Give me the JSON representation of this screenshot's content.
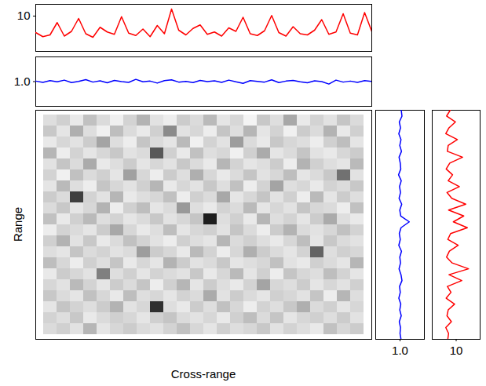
{
  "chart_data": [
    {
      "type": "heatmap",
      "xlabel": "Cross-range",
      "ylabel": "Range",
      "tick_labels": false,
      "cells": [
        [
          0.8,
          1.2,
          0.5,
          1.6,
          0.9,
          0.3,
          1.1,
          2.0,
          0.7,
          0.4,
          1.3,
          0.9,
          1.8,
          0.6,
          1.0,
          0.2,
          1.4,
          0.8,
          2.3,
          0.5,
          1.1,
          0.7,
          1.5,
          0.9
        ],
        [
          1.4,
          0.6,
          2.1,
          0.8,
          0.3,
          1.7,
          0.9,
          0.5,
          1.2,
          3.1,
          0.7,
          1.0,
          0.4,
          1.5,
          0.8,
          1.9,
          0.6,
          1.1,
          0.3,
          1.3,
          0.9,
          2.0,
          0.5,
          1.2
        ],
        [
          0.5,
          1.0,
          0.7,
          1.3,
          2.4,
          0.8,
          0.4,
          1.5,
          0.9,
          0.6,
          1.8,
          0.3,
          1.1,
          0.7,
          2.6,
          0.9,
          0.5,
          1.4,
          1.0,
          0.8,
          0.4,
          1.2,
          1.7,
          0.6
        ],
        [
          1.9,
          0.4,
          1.1,
          0.6,
          1.0,
          1.4,
          0.7,
          0.9,
          4.5,
          1.2,
          0.5,
          1.6,
          0.8,
          1.0,
          0.3,
          1.2,
          2.2,
          0.6,
          0.9,
          1.5,
          0.7,
          0.5,
          1.0,
          1.3
        ],
        [
          0.7,
          1.5,
          0.9,
          2.2,
          0.5,
          0.8,
          1.3,
          0.6,
          1.0,
          0.7,
          1.4,
          0.9,
          0.5,
          1.9,
          1.1,
          0.6,
          0.8,
          1.3,
          0.4,
          2.0,
          1.2,
          0.8,
          0.6,
          1.8
        ],
        [
          1.1,
          0.3,
          1.6,
          0.9,
          1.2,
          0.6,
          2.5,
          1.0,
          0.4,
          1.3,
          0.8,
          2.1,
          1.0,
          0.5,
          0.9,
          1.5,
          0.7,
          1.0,
          1.7,
          0.6,
          0.9,
          1.4,
          3.8,
          0.7
        ],
        [
          0.6,
          1.8,
          0.8,
          0.4,
          1.5,
          1.0,
          0.7,
          1.2,
          1.9,
          0.5,
          1.0,
          0.7,
          1.4,
          0.8,
          1.6,
          0.4,
          1.1,
          2.4,
          0.8,
          1.0,
          0.5,
          1.1,
          0.9,
          1.4
        ],
        [
          1.3,
          0.9,
          5.2,
          1.1,
          0.7,
          1.9,
          0.5,
          0.8,
          1.0,
          1.6,
          0.4,
          1.2,
          0.9,
          2.3,
          0.6,
          1.0,
          1.5,
          0.7,
          1.2,
          0.4,
          1.8,
          0.6,
          1.3,
          0.8
        ],
        [
          0.9,
          1.4,
          0.6,
          1.0,
          2.0,
          0.4,
          1.2,
          1.7,
          0.6,
          0.9,
          2.7,
          0.8,
          0.5,
          1.1,
          0.9,
          1.8,
          0.6,
          1.0,
          0.7,
          1.5,
          1.0,
          0.9,
          0.4,
          1.6
        ],
        [
          1.6,
          0.5,
          1.2,
          1.8,
          0.8,
          1.1,
          0.6,
          0.9,
          1.4,
          0.7,
          1.0,
          1.5,
          6.1,
          0.8,
          1.2,
          0.5,
          1.9,
          0.8,
          1.1,
          0.6,
          1.3,
          2.2,
          0.8,
          0.5
        ],
        [
          0.4,
          1.1,
          0.9,
          0.6,
          1.3,
          2.3,
          1.0,
          0.5,
          0.8,
          1.7,
          0.6,
          1.0,
          1.2,
          0.7,
          1.5,
          0.9,
          0.4,
          1.3,
          2.0,
          0.9,
          0.7,
          1.0,
          1.6,
          1.1
        ],
        [
          1.2,
          2.0,
          0.7,
          1.4,
          0.5,
          0.9,
          1.6,
          1.1,
          0.7,
          0.4,
          1.2,
          0.8,
          0.6,
          1.9,
          0.9,
          1.2,
          0.8,
          0.5,
          1.0,
          1.7,
          0.6,
          1.4,
          0.9,
          0.7
        ],
        [
          0.8,
          0.6,
          1.5,
          0.9,
          1.1,
          0.7,
          0.9,
          2.6,
          1.3,
          1.0,
          0.5,
          1.8,
          1.1,
          0.4,
          1.0,
          2.1,
          1.3,
          0.9,
          0.6,
          1.1,
          4.2,
          0.8,
          1.2,
          1.0
        ],
        [
          1.7,
          1.0,
          0.4,
          1.2,
          0.8,
          1.5,
          0.5,
          1.0,
          0.6,
          2.0,
          1.3,
          0.7,
          0.9,
          1.4,
          0.6,
          0.8,
          1.0,
          1.6,
          0.7,
          0.5,
          1.2,
          0.9,
          0.6,
          1.9
        ],
        [
          0.5,
          1.3,
          1.0,
          0.7,
          3.4,
          0.8,
          1.2,
          0.6,
          1.1,
          0.9,
          0.7,
          1.4,
          0.5,
          1.0,
          1.8,
          0.6,
          1.2,
          0.4,
          1.5,
          1.0,
          0.8,
          1.7,
          1.1,
          0.6
        ],
        [
          1.0,
          0.7,
          1.8,
          1.1,
          0.6,
          1.3,
          0.9,
          1.5,
          0.4,
          1.2,
          1.9,
          0.6,
          1.3,
          0.8,
          0.5,
          1.1,
          2.4,
          1.0,
          0.8,
          1.3,
          0.6,
          1.0,
          0.7,
          1.2
        ],
        [
          1.4,
          0.9,
          0.6,
          1.6,
          1.0,
          0.5,
          1.7,
          0.8,
          1.0,
          0.6,
          1.1,
          0.9,
          2.2,
          0.7,
          1.3,
          0.9,
          0.6,
          1.2,
          1.0,
          0.7,
          1.5,
          0.4,
          1.9,
          0.8
        ],
        [
          0.6,
          1.5,
          1.1,
          0.8,
          1.3,
          2.0,
          0.7,
          1.0,
          5.6,
          0.8,
          0.5,
          1.3,
          0.8,
          1.6,
          1.0,
          0.4,
          1.1,
          0.8,
          1.4,
          2.1,
          0.9,
          1.2,
          0.6,
          1.0
        ],
        [
          1.1,
          0.8,
          1.4,
          0.5,
          0.9,
          1.2,
          1.0,
          0.6,
          1.2,
          1.5,
          0.9,
          0.7,
          1.0,
          0.5,
          1.2,
          1.7,
          0.9,
          1.5,
          0.6,
          1.0,
          1.2,
          0.8,
          1.3,
          0.7
        ],
        [
          0.9,
          1.2,
          0.7,
          1.9,
          0.6,
          1.0,
          1.3,
          0.9,
          0.7,
          1.1,
          1.6,
          1.0,
          0.6,
          1.2,
          0.8,
          1.0,
          1.4,
          0.7,
          1.1,
          0.8,
          0.5,
          1.6,
          1.0,
          1.3
        ]
      ]
    },
    {
      "type": "line",
      "color": "#ff0000",
      "ylim": [
        4,
        12
      ],
      "yticks": [
        10
      ],
      "values": [
        7.2,
        6.5,
        6.8,
        8.9,
        6.6,
        7.4,
        9.6,
        7.0,
        6.4,
        8.1,
        7.3,
        6.9,
        9.9,
        7.1,
        6.7,
        7.8,
        6.5,
        8.4,
        7.0,
        11.2,
        7.6,
        6.8,
        7.9,
        8.5,
        6.9,
        7.3,
        6.6,
        8.0,
        7.4,
        9.8,
        7.0,
        6.7,
        7.5,
        10.1,
        7.2,
        6.6,
        8.2,
        7.0,
        6.8,
        7.6,
        9.4,
        6.9,
        7.3,
        10.4,
        7.1,
        6.8,
        10.6,
        7.4
      ]
    },
    {
      "type": "line",
      "color": "#0000ff",
      "ylim": [
        0,
        2
      ],
      "yticks": [
        1
      ],
      "values": [
        1.02,
        0.97,
        1.04,
        0.99,
        1.06,
        0.96,
        1.01,
        1.08,
        0.98,
        1.03,
        0.95,
        1.05,
        1.0,
        0.97,
        1.09,
        0.99,
        1.02,
        0.94,
        1.04,
        1.07,
        0.98,
        1.01,
        0.96,
        1.05,
        1.0,
        1.03,
        0.97,
        1.06,
        0.99,
        0.93,
        1.04,
        1.01,
        0.98,
        1.07,
        0.96,
        1.02,
        1.05,
        0.99,
        0.95,
        1.03,
        1.0,
        0.9,
        1.06,
        0.98,
        1.02,
        0.97,
        1.04,
        1.01
      ]
    },
    {
      "type": "line",
      "color": "#0000ff",
      "xlim": [
        0,
        2
      ],
      "xticks": [
        1
      ],
      "values": [
        1.05,
        1.08,
        0.97,
        1.02,
        0.95,
        1.04,
        0.99,
        1.06,
        0.96,
        1.01,
        1.03,
        0.94,
        1.05,
        0.98,
        1.02,
        0.96,
        1.07,
        0.99,
        1.03,
        1.38,
        1.04,
        0.97,
        1.01,
        0.95,
        1.06,
        0.99,
        1.02,
        0.96,
        1.04,
        1.08,
        0.98,
        1.01,
        0.95,
        1.03,
        0.99,
        1.05,
        0.97,
        1.02,
        1.0,
        1.04
      ]
    },
    {
      "type": "line",
      "color": "#ff0000",
      "xlim": [
        4,
        16
      ],
      "xticks": [
        10
      ],
      "values": [
        8.5,
        7.6,
        9.8,
        8.2,
        7.4,
        10.3,
        8.0,
        7.8,
        11.6,
        8.4,
        7.5,
        9.1,
        8.0,
        10.8,
        7.7,
        8.9,
        12.4,
        8.1,
        11.9,
        9.3,
        12.8,
        8.6,
        7.9,
        10.5,
        8.3,
        7.6,
        9.0,
        13.1,
        8.2,
        11.4,
        7.8,
        8.7,
        7.5,
        9.6,
        8.0,
        7.7,
        8.8,
        7.4,
        8.1,
        7.9
      ]
    }
  ]
}
